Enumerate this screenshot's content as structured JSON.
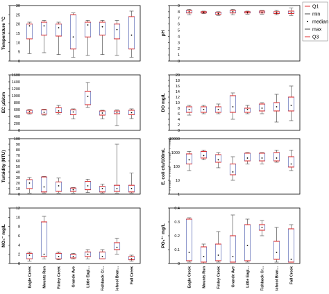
{
  "chart_data": [
    {
      "type": "boxplot",
      "ylabel": "Temperature  °C",
      "scale": "linear",
      "ylim": [
        0,
        30
      ],
      "yticks": [
        0,
        5,
        10,
        15,
        20,
        25,
        30
      ],
      "yticklabels": [
        "0",
        "5",
        "10",
        "15",
        "20",
        "25",
        "30"
      ],
      "categories": [
        "Eagle Creek",
        "Mounts Run",
        "Finley Creek",
        "Grande Ave",
        "Little Eagle Creek",
        "Fishback Creek",
        "School Branch",
        "Fall Creek"
      ],
      "min": [
        4,
        4.5,
        3.5,
        2,
        3,
        3.5,
        3,
        2
      ],
      "q1": [
        12,
        14,
        13.5,
        6.5,
        13,
        14,
        12,
        6.5
      ],
      "median": [
        19,
        19,
        18,
        13,
        19.5,
        18.5,
        17,
        14
      ],
      "q3": [
        20,
        21,
        20,
        25,
        21,
        21,
        20,
        24
      ],
      "max": [
        21,
        22,
        21,
        26,
        22,
        22,
        22,
        27
      ]
    },
    {
      "type": "boxplot",
      "ylabel": "pH",
      "scale": "linear",
      "ylim": [
        0,
        9
      ],
      "yticks": [
        0,
        1,
        2,
        3,
        4,
        5,
        6,
        7,
        8,
        9
      ],
      "yticklabels": [
        "0",
        "1",
        "2",
        "3",
        "4",
        "5",
        "6",
        "7",
        "8",
        "9"
      ],
      "categories": [
        "Eagle Creek",
        "Mounts Run",
        "Finley Creek",
        "Grande Ave",
        "Little Eagle Creek",
        "Fishback Creek",
        "School Branch",
        "Fall Creek"
      ],
      "min": [
        7.5,
        7.7,
        7.4,
        7.5,
        7.6,
        7.6,
        7.5,
        7.4
      ],
      "q1": [
        7.8,
        7.8,
        7.6,
        7.8,
        7.8,
        7.8,
        7.7,
        7.7
      ],
      "median": [
        8.0,
        7.9,
        7.7,
        8.0,
        7.9,
        7.9,
        7.8,
        7.9
      ],
      "q3": [
        8.2,
        8.0,
        7.9,
        8.2,
        8.0,
        8.1,
        8.0,
        8.1
      ],
      "max": [
        8.4,
        8.1,
        8.0,
        8.4,
        8.1,
        8.2,
        8.2,
        8.6
      ]
    },
    {
      "type": "boxplot",
      "ylabel": "EC  μS/cm",
      "scale": "linear",
      "ylim": [
        0,
        1600
      ],
      "yticks": [
        0,
        200,
        400,
        600,
        800,
        1000,
        1200,
        1400,
        1600
      ],
      "yticklabels": [
        "0",
        "200",
        "400",
        "600",
        "800",
        "1000",
        "1200",
        "1400",
        "1600"
      ],
      "categories": [
        "Eagle Creek",
        "Mounts Run",
        "Finley Creek",
        "Grande Ave",
        "Little Eagle Creek",
        "Fishback Creek",
        "School Branch",
        "Fall Creek"
      ],
      "min": [
        470,
        440,
        470,
        330,
        660,
        330,
        130,
        340
      ],
      "q1": [
        500,
        470,
        510,
        450,
        740,
        440,
        480,
        450
      ],
      "median": [
        540,
        520,
        560,
        530,
        980,
        500,
        520,
        510
      ],
      "q3": [
        580,
        590,
        650,
        590,
        1130,
        560,
        560,
        580
      ],
      "max": [
        600,
        610,
        720,
        620,
        1380,
        580,
        590,
        620
      ]
    },
    {
      "type": "boxplot",
      "ylabel": "DO  mg/L",
      "scale": "linear",
      "ylim": [
        0,
        20
      ],
      "yticks": [
        0,
        2,
        4,
        6,
        8,
        10,
        12,
        14,
        16,
        18,
        20
      ],
      "yticklabels": [
        "0",
        "2",
        "4",
        "6",
        "8",
        "10",
        "12",
        "14",
        "16",
        "18",
        "20"
      ],
      "categories": [
        "Eagle Creek",
        "Mounts Run",
        "Finley Creek",
        "Grande Ave",
        "Little Eagle Creek",
        "Fishback Creek",
        "School Branch",
        "Fall Creek"
      ],
      "min": [
        5.5,
        6,
        6,
        4,
        6,
        6,
        3,
        3.5
      ],
      "q1": [
        6.5,
        6.5,
        6.5,
        6.5,
        6.5,
        7,
        7,
        7
      ],
      "median": [
        7.5,
        7.5,
        7.5,
        8.5,
        7.5,
        8,
        8.5,
        9
      ],
      "q3": [
        8.5,
        8.5,
        8.5,
        12.5,
        8,
        9.5,
        10,
        12
      ],
      "max": [
        9,
        9,
        9.5,
        13.5,
        9,
        10,
        13,
        16
      ]
    },
    {
      "type": "boxplot",
      "ylabel": "Turbidity (NTU)",
      "scale": "linear",
      "ylim": [
        0,
        100
      ],
      "yticks": [
        0,
        10,
        20,
        30,
        40,
        50,
        60,
        70,
        80,
        90,
        100
      ],
      "yticklabels": [
        "0",
        "10",
        "20",
        "30",
        "40",
        "50",
        "60",
        "70",
        "80",
        "90",
        "100"
      ],
      "categories": [
        "Eagle Creek",
        "Mounts Run",
        "Finley Creek",
        "Grande Ave",
        "Little Eagle Creek",
        "Fishback Creek",
        "School Branch",
        "Fall Creek"
      ],
      "min": [
        2,
        2,
        2,
        2,
        3,
        2,
        2,
        2
      ],
      "q1": [
        10,
        4,
        5,
        5,
        8,
        4,
        5,
        4
      ],
      "median": [
        20,
        13,
        15,
        8,
        15,
        10,
        10,
        10
      ],
      "q3": [
        26,
        31,
        22,
        11,
        23,
        14,
        16,
        16
      ],
      "max": [
        30,
        32,
        29,
        12,
        27,
        18,
        90,
        38
      ]
    },
    {
      "type": "boxplot",
      "ylabel": "E. coli  cfu/100mL",
      "scale": "log",
      "ylim": [
        1,
        10000
      ],
      "yticks": [
        1,
        10,
        100,
        1000,
        10000
      ],
      "yticklabels": [
        "1",
        "10",
        "100",
        "1000",
        "10000"
      ],
      "categories": [
        "Eagle Creek",
        "Mounts Run",
        "Finley Creek",
        "Grande Ave",
        "Little Eagle Creek",
        "Fishback Creek",
        "School Branch",
        "Fall Creek"
      ],
      "min": [
        50,
        300,
        80,
        10,
        150,
        150,
        200,
        50
      ],
      "q1": [
        150,
        400,
        200,
        25,
        250,
        250,
        250,
        90
      ],
      "median": [
        300,
        600,
        300,
        40,
        400,
        400,
        400,
        150
      ],
      "q3": [
        800,
        1200,
        700,
        150,
        900,
        900,
        1000,
        500
      ],
      "max": [
        1200,
        1500,
        1000,
        500,
        1000,
        1000,
        1500,
        1500
      ]
    },
    {
      "type": "boxplot",
      "ylabel": "NO₃⁻  mg/L",
      "scale": "linear",
      "ylim": [
        0,
        12
      ],
      "yticks": [
        0,
        2,
        4,
        6,
        8,
        10,
        12
      ],
      "yticklabels": [
        "0",
        "2",
        "4",
        "6",
        "8",
        "10",
        "12"
      ],
      "categories": [
        "Eagle Creek",
        "Mounts Run",
        "Finley Creek",
        "Grande Ave",
        "Little Eagle Creek",
        "Fishback Creek",
        "School Branch",
        "Fall Creek"
      ],
      "min": [
        0.5,
        1,
        0.8,
        1,
        1,
        1,
        2,
        0.5
      ],
      "q1": [
        1,
        1.5,
        1,
        1.2,
        1.5,
        1,
        3,
        0.8
      ],
      "median": [
        1.8,
        2,
        1.5,
        1.5,
        2,
        1.5,
        3.5,
        1
      ],
      "q3": [
        2.2,
        9,
        2.2,
        2,
        2.5,
        2.5,
        4.5,
        1.5
      ],
      "max": [
        2.5,
        10.2,
        2.5,
        2.2,
        3,
        3,
        5.5,
        1.8
      ]
    },
    {
      "type": "boxplot",
      "ylabel": "PO₄³⁻  mg/L",
      "scale": "linear",
      "ylim": [
        0,
        0.4
      ],
      "yticks": [
        0,
        0.1,
        0.2,
        0.3,
        0.4
      ],
      "yticklabels": [
        "0",
        "0.1",
        "0.2",
        "0.3",
        "0.4"
      ],
      "categories": [
        "Eagle Creek",
        "Mounts Run",
        "Finley Creek",
        "Grande Ave",
        "Little Eagle Creek",
        "Fishback Creek",
        "School Branch",
        "Fall Creek"
      ],
      "min": [
        0.01,
        0.0,
        0.01,
        0.01,
        0.01,
        0.2,
        0.01,
        0.01
      ],
      "q1": [
        0.02,
        0.01,
        0.02,
        0.01,
        0.02,
        0.24,
        0.03,
        0.01
      ],
      "median": [
        0.08,
        0.05,
        0.06,
        0.05,
        0.13,
        0.26,
        0.08,
        0.03
      ],
      "q3": [
        0.32,
        0.12,
        0.14,
        0.2,
        0.28,
        0.28,
        0.16,
        0.25
      ],
      "max": [
        0.33,
        0.14,
        0.23,
        0.35,
        0.32,
        0.31,
        0.26,
        0.28
      ]
    }
  ],
  "legend": {
    "position": "top-right",
    "items": [
      {
        "label": "Q1",
        "marker": "red-line"
      },
      {
        "label": "min",
        "marker": "dark-line"
      },
      {
        "label": "median",
        "marker": "dot"
      },
      {
        "label": "max",
        "marker": "dark-line"
      },
      {
        "label": "Q3",
        "marker": "red-line"
      }
    ]
  },
  "colors": {
    "box_q1_q3": "#e03030",
    "box_sides": "#5060b0",
    "whisker": "#555555",
    "median_dot": "#000000",
    "axis": "#000000"
  }
}
